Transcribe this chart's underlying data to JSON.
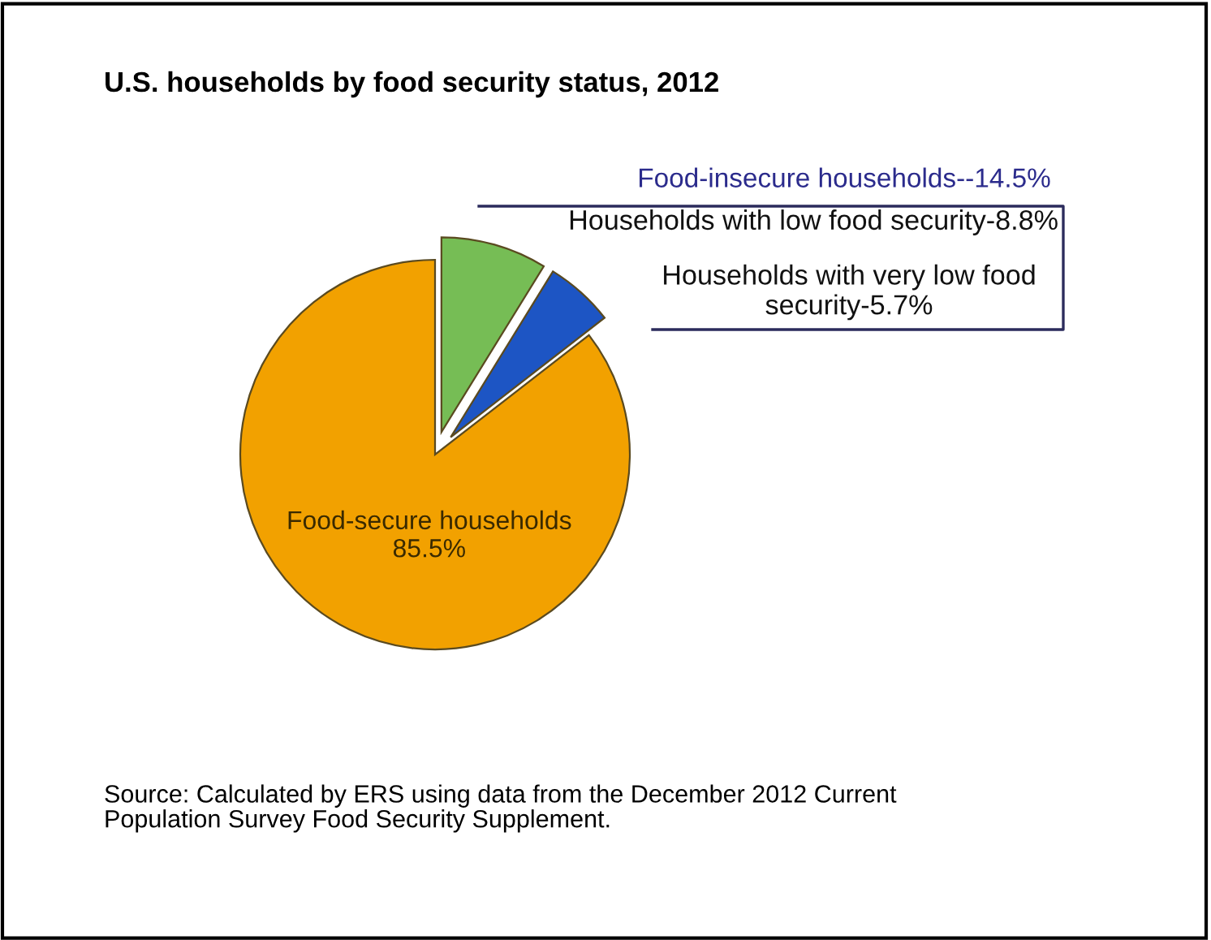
{
  "chart_data": {
    "type": "pie",
    "title": "U.S. households by food security status, 2012",
    "categories": [
      "Households with low food security-8.8%",
      "Households with very low food\nsecurity-5.7%",
      "Food-secure households\n85.5%"
    ],
    "values": [
      8.8,
      5.7,
      85.5
    ],
    "colors": [
      "#76bd55",
      "#1d55c4",
      "#f2a100"
    ],
    "annotations": [
      "Food-insecure households--14.5%",
      "Source: Calculated by ERS using data from the December 2012 Current\nPopulation Survey Food Security Supplement."
    ]
  }
}
